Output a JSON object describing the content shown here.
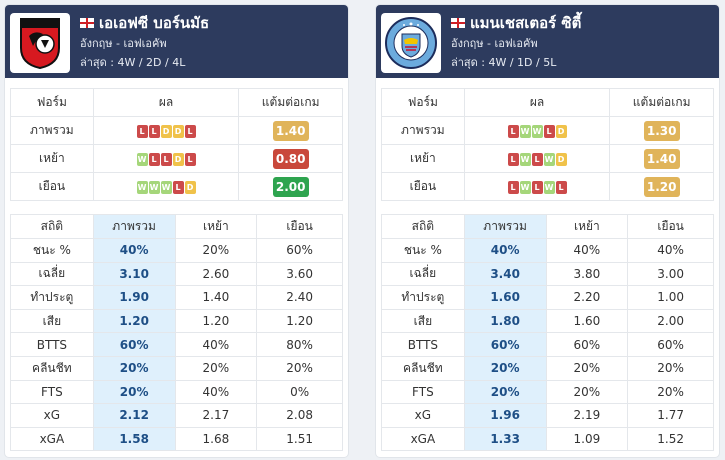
{
  "labels": {
    "form_header": "ฟอร์ม",
    "result_header": "ผล",
    "ppg_header": "แต้มต่อเกม",
    "stats_header": "สถิติ",
    "overall": "ภาพรวม",
    "away": "เหย้า",
    "home": "เยือน",
    "form_rows": [
      "ภาพรวม",
      "เหย้า",
      "เยือน"
    ]
  },
  "colors": {
    "W": "#a5d67a",
    "D": "#f0c24a",
    "L": "#cc4a4a",
    "ppg_gold": "#e0b45a",
    "ppg_red": "#c9483b",
    "ppg_green": "#2ea44f",
    "header_bg": "#2d3b5e"
  },
  "teams": [
    {
      "name": "เอเอฟซี บอร์นมัธ",
      "league": "อังกฤษ - เอฟเอคัพ",
      "last": "ล่าสุด : 4W / 2D / 4L",
      "logo_icon": "bournemouth-crest-icon",
      "form": [
        {
          "results": [
            "L",
            "L",
            "D",
            "D",
            "L"
          ],
          "ppg": "1.40",
          "ppg_color": "#e0b45a"
        },
        {
          "results": [
            "W",
            "L",
            "L",
            "D",
            "L"
          ],
          "ppg": "0.80",
          "ppg_color": "#c9483b"
        },
        {
          "results": [
            "W",
            "W",
            "W",
            "L",
            "D"
          ],
          "ppg": "2.00",
          "ppg_color": "#2ea44f"
        }
      ],
      "stats": [
        [
          "ชนะ %",
          "40%",
          "20%",
          "60%"
        ],
        [
          "เฉลี่ย",
          "3.10",
          "2.60",
          "3.60"
        ],
        [
          "ทำประตู",
          "1.90",
          "1.40",
          "2.40"
        ],
        [
          "เสีย",
          "1.20",
          "1.20",
          "1.20"
        ],
        [
          "BTTS",
          "60%",
          "40%",
          "80%"
        ],
        [
          "คลีนชีท",
          "20%",
          "20%",
          "20%"
        ],
        [
          "FTS",
          "20%",
          "40%",
          "0%"
        ],
        [
          "xG",
          "2.12",
          "2.17",
          "2.08"
        ],
        [
          "xGA",
          "1.58",
          "1.68",
          "1.51"
        ]
      ]
    },
    {
      "name": "แมนเชสเตอร์ ซิตี้",
      "league": "อังกฤษ - เอฟเอคัพ",
      "last": "ล่าสุด : 4W / 1D / 5L",
      "logo_icon": "man-city-crest-icon",
      "form": [
        {
          "results": [
            "L",
            "W",
            "W",
            "L",
            "D"
          ],
          "ppg": "1.30",
          "ppg_color": "#e0b45a"
        },
        {
          "results": [
            "L",
            "W",
            "L",
            "W",
            "D"
          ],
          "ppg": "1.40",
          "ppg_color": "#e0b45a"
        },
        {
          "results": [
            "L",
            "W",
            "L",
            "W",
            "L"
          ],
          "ppg": "1.20",
          "ppg_color": "#e0b45a"
        }
      ],
      "stats": [
        [
          "ชนะ %",
          "40%",
          "40%",
          "40%"
        ],
        [
          "เฉลี่ย",
          "3.40",
          "3.80",
          "3.00"
        ],
        [
          "ทำประตู",
          "1.60",
          "2.20",
          "1.00"
        ],
        [
          "เสีย",
          "1.80",
          "1.60",
          "2.00"
        ],
        [
          "BTTS",
          "60%",
          "60%",
          "60%"
        ],
        [
          "คลีนชีท",
          "20%",
          "20%",
          "20%"
        ],
        [
          "FTS",
          "20%",
          "20%",
          "20%"
        ],
        [
          "xG",
          "1.96",
          "2.19",
          "1.77"
        ],
        [
          "xGA",
          "1.33",
          "1.09",
          "1.52"
        ]
      ]
    }
  ]
}
